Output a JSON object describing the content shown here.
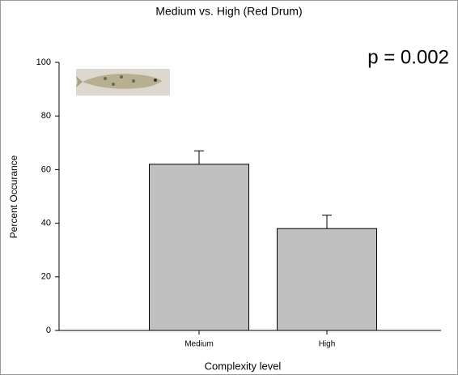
{
  "chart_data": {
    "type": "bar",
    "title": "Medium vs. High (Red Drum)",
    "annotation": "p = 0.002",
    "xlabel": "Complexity level",
    "ylabel": "Percent Occurance",
    "categories": [
      "Medium",
      "High"
    ],
    "values": [
      62,
      38
    ],
    "errors": [
      5,
      5
    ],
    "color": "#c0c0c0",
    "ylim": [
      0,
      100
    ],
    "yticks": [
      0,
      20,
      40,
      60,
      80,
      100
    ]
  }
}
